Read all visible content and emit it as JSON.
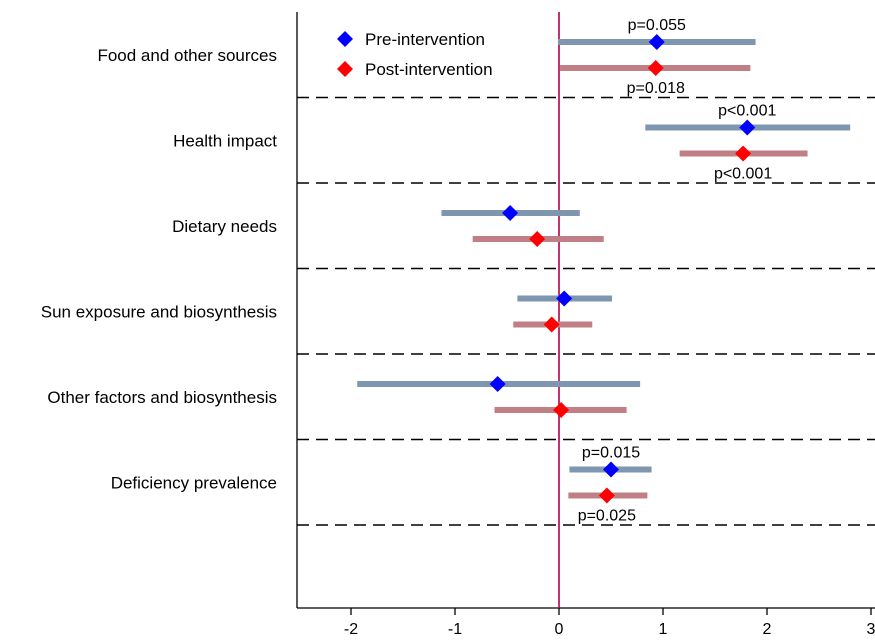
{
  "chart_data": {
    "type": "forest",
    "title": "",
    "xlabel": "",
    "ylabel": "",
    "xlim": [
      -2.45,
      3.0
    ],
    "xticks": [
      -2,
      -1,
      0,
      1,
      2,
      3
    ],
    "reference_line_x": 0,
    "grid": false,
    "legend_position": "top-left",
    "series": [
      {
        "name": "Pre-intervention",
        "marker_color": "#0000ff",
        "ci_color": "#7f96b0"
      },
      {
        "name": "Post-intervention",
        "marker_color": "#ff0000",
        "ci_color": "#bf7f85"
      }
    ],
    "categories": [
      {
        "label": "Food and other sources",
        "pre": {
          "estimate": 0.94,
          "low": -0.01,
          "high": 1.89,
          "p_label": "p=0.055"
        },
        "post": {
          "estimate": 0.93,
          "low": 0.01,
          "high": 1.84,
          "p_label": "p=0.018"
        }
      },
      {
        "label": "Health impact",
        "pre": {
          "estimate": 1.81,
          "low": 0.83,
          "high": 2.8,
          "p_label": "p<0.001"
        },
        "post": {
          "estimate": 1.77,
          "low": 1.16,
          "high": 2.39,
          "p_label": "p<0.001"
        }
      },
      {
        "label": "Dietary needs",
        "pre": {
          "estimate": -0.47,
          "low": -1.13,
          "high": 0.2,
          "p_label": ""
        },
        "post": {
          "estimate": -0.21,
          "low": -0.83,
          "high": 0.43,
          "p_label": ""
        }
      },
      {
        "label": "Sun exposure and biosynthesis",
        "pre": {
          "estimate": 0.05,
          "low": -0.4,
          "high": 0.51,
          "p_label": ""
        },
        "post": {
          "estimate": -0.07,
          "low": -0.44,
          "high": 0.32,
          "p_label": ""
        }
      },
      {
        "label": "Other factors and biosynthesis",
        "pre": {
          "estimate": -0.59,
          "low": -1.94,
          "high": 0.78,
          "p_label": ""
        },
        "post": {
          "estimate": 0.02,
          "low": -0.62,
          "high": 0.65,
          "p_label": ""
        }
      },
      {
        "label": "Deficiency prevalence",
        "pre": {
          "estimate": 0.5,
          "low": 0.1,
          "high": 0.89,
          "p_label": "p=0.015"
        },
        "post": {
          "estimate": 0.46,
          "low": 0.09,
          "high": 0.85,
          "p_label": "p=0.025"
        }
      }
    ]
  }
}
